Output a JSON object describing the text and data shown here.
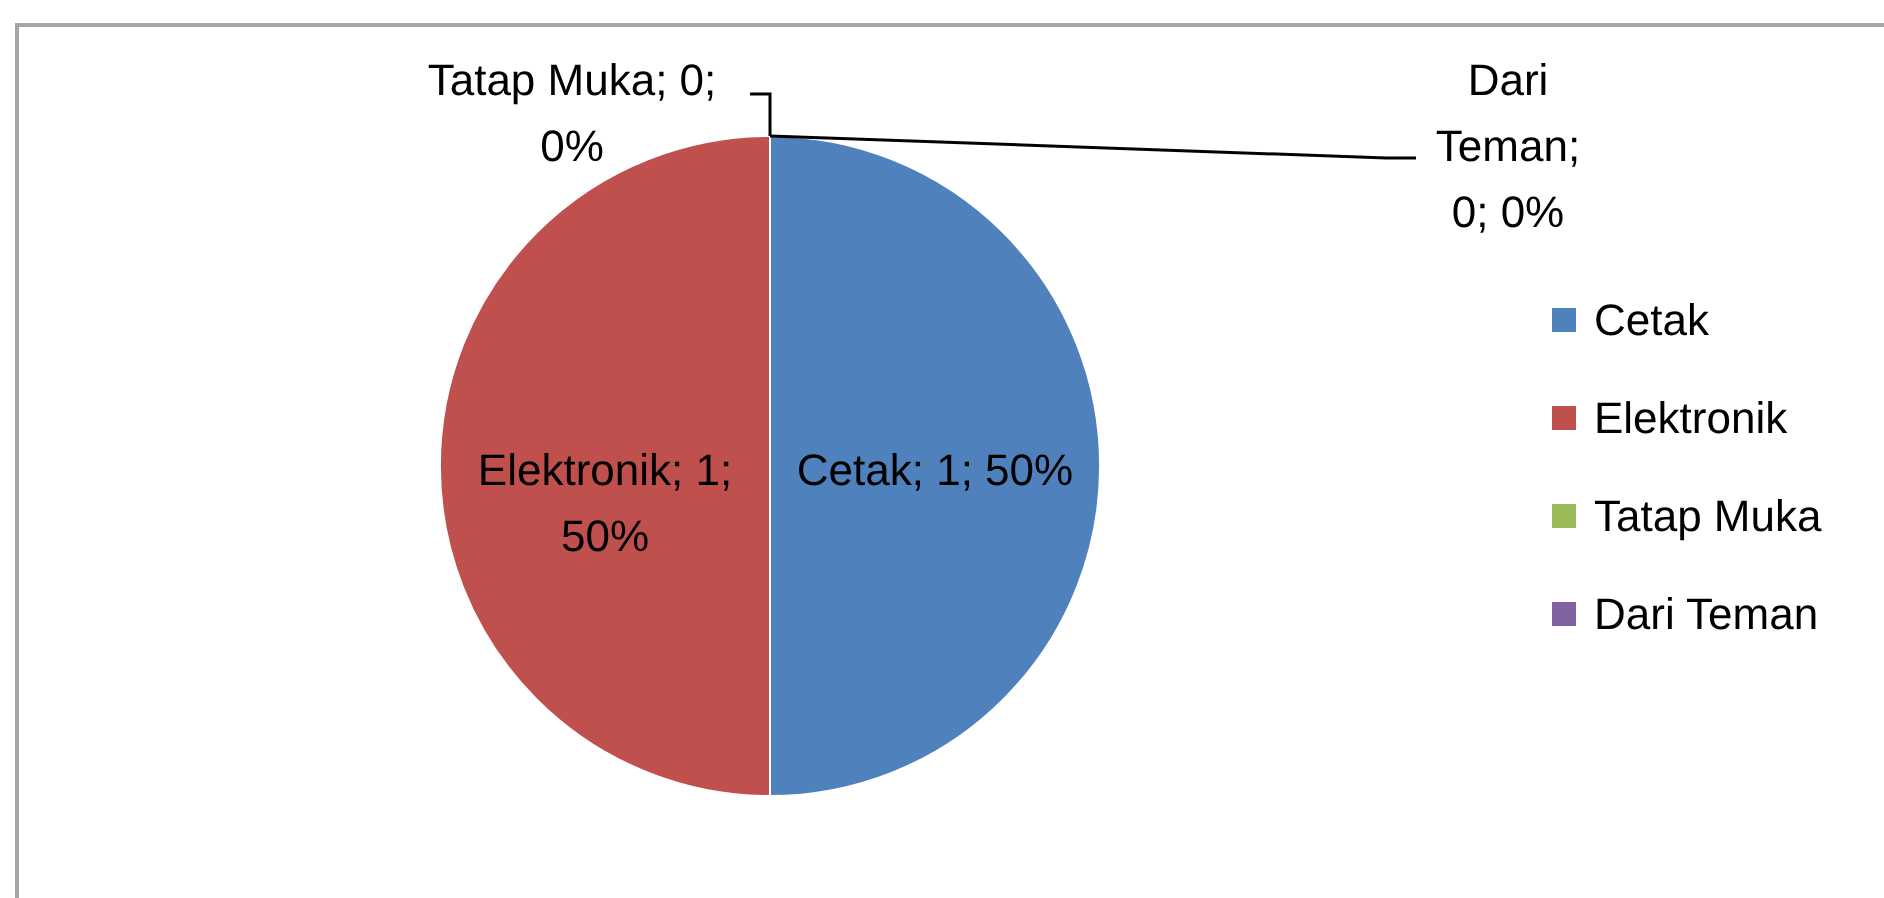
{
  "chart_data": {
    "type": "pie",
    "categories": [
      "Cetak",
      "Elektronik",
      "Tatap Muka",
      "Dari Teman"
    ],
    "values": [
      1,
      1,
      0,
      0
    ],
    "colors": [
      "#4f81bd",
      "#c0504d",
      "#9bbb59",
      "#8064a2"
    ],
    "value_labels": [
      "Cetak; 1; 50%",
      "Elektronik; 1; 50%",
      "Tatap Muka; 0; 0%",
      "Dari Teman; 0; 0%"
    ],
    "legend": "right"
  }
}
